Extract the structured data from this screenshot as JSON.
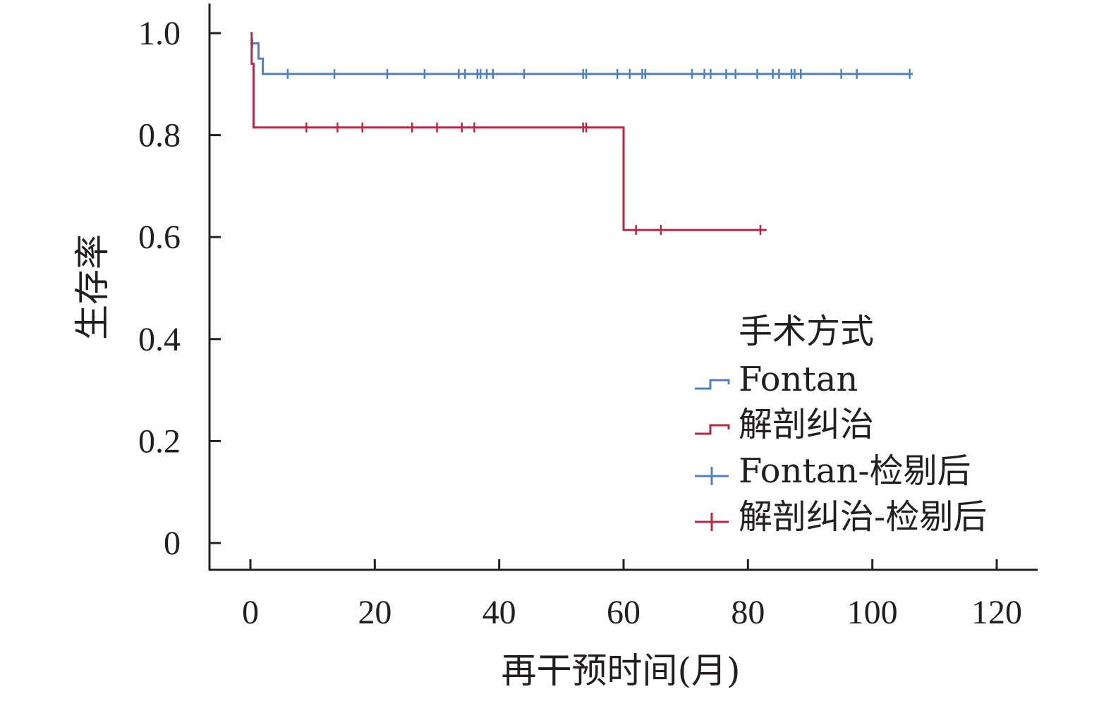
{
  "chart_data": {
    "type": "line",
    "subtype": "kaplan-meier",
    "title": "",
    "xlabel": "再干预时间(月)",
    "ylabel": "生存率",
    "xlim": [
      0,
      120
    ],
    "ylim": [
      0,
      1.0
    ],
    "x_ticks": [
      0,
      20,
      40,
      60,
      80,
      100,
      120
    ],
    "y_ticks": [
      0,
      0.2,
      0.4,
      0.6,
      0.8,
      1.0
    ],
    "x_tick_labels": [
      "0",
      "20",
      "40",
      "60",
      "80",
      "100",
      "120"
    ],
    "y_tick_labels": [
      "0",
      "0.2",
      "0.4",
      "0.6",
      "0.8",
      "1.0"
    ],
    "grid": false,
    "legend": {
      "title": "手术方式",
      "position": "right",
      "entries": [
        {
          "label": "Fontan",
          "symbol": "step",
          "color": "#4f81bd"
        },
        {
          "label": "解剖纠治",
          "symbol": "step",
          "color": "#b22a45"
        },
        {
          "label": "Fontan-检剔后",
          "symbol": "cross",
          "color": "#4f81bd"
        },
        {
          "label": "解剖纠治-检剔后",
          "symbol": "cross",
          "color": "#b22a45"
        }
      ]
    },
    "series": [
      {
        "name": "Fontan",
        "color": "#4f81bd",
        "steps": [
          [
            0,
            0.98
          ],
          [
            1.3,
            0.95
          ],
          [
            2.0,
            0.92
          ],
          [
            106.5,
            0.92
          ]
        ],
        "censored": [
          [
            0.3,
            0.98
          ],
          [
            6,
            0.92
          ],
          [
            13.5,
            0.92
          ],
          [
            22,
            0.92
          ],
          [
            28,
            0.92
          ],
          [
            33.5,
            0.92
          ],
          [
            34.5,
            0.92
          ],
          [
            36.5,
            0.92
          ],
          [
            37,
            0.92
          ],
          [
            38,
            0.92
          ],
          [
            39,
            0.92
          ],
          [
            44,
            0.92
          ],
          [
            53.5,
            0.92
          ],
          [
            54,
            0.92
          ],
          [
            59,
            0.92
          ],
          [
            61,
            0.92
          ],
          [
            63,
            0.92
          ],
          [
            63.5,
            0.92
          ],
          [
            71,
            0.92
          ],
          [
            73,
            0.92
          ],
          [
            74,
            0.92
          ],
          [
            76.5,
            0.92
          ],
          [
            78,
            0.92
          ],
          [
            81.5,
            0.92
          ],
          [
            84,
            0.92
          ],
          [
            85,
            0.92
          ],
          [
            87,
            0.92
          ],
          [
            87.5,
            0.92
          ],
          [
            88.5,
            0.92
          ],
          [
            95,
            0.92
          ],
          [
            97.5,
            0.92
          ],
          [
            106,
            0.92
          ]
        ]
      },
      {
        "name": "解剖纠治",
        "color": "#b22a45",
        "steps": [
          [
            0,
            1.0
          ],
          [
            0.2,
            0.94
          ],
          [
            0.5,
            0.815
          ],
          [
            60,
            0.614
          ],
          [
            83,
            0.614
          ]
        ],
        "censored": [
          [
            9,
            0.815
          ],
          [
            14,
            0.815
          ],
          [
            18,
            0.815
          ],
          [
            26,
            0.815
          ],
          [
            30,
            0.815
          ],
          [
            34,
            0.815
          ],
          [
            36,
            0.815
          ],
          [
            53.5,
            0.815
          ],
          [
            54,
            0.815
          ],
          [
            62,
            0.614
          ],
          [
            66,
            0.614
          ],
          [
            82,
            0.614
          ]
        ]
      }
    ]
  }
}
